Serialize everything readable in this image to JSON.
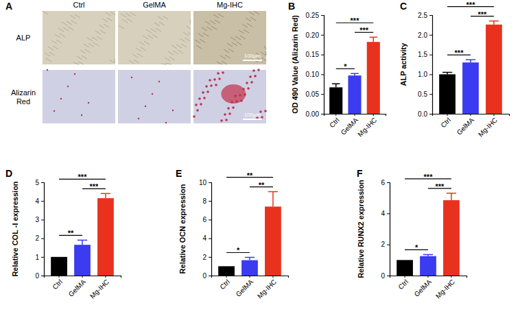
{
  "image_panel": {
    "panel_label": "A",
    "columns": [
      "Ctrl",
      "GelMA",
      "Mg-IHC"
    ],
    "rows": [
      "ALP",
      "Alizarin Red"
    ],
    "scale_bar": "100μm"
  },
  "chart_data": [
    {
      "type": "bar",
      "panel_label": "B",
      "y_label": "OD 490 Value (Alizarin Red)",
      "categories": [
        "Ctrl",
        "GelMA",
        "Mg-IHC"
      ],
      "values": [
        0.067,
        0.097,
        0.182
      ],
      "errors": [
        0.009,
        0.005,
        0.012
      ],
      "colors": [
        "#000000",
        "#3b3bf0",
        "#e8321e"
      ],
      "ylim": [
        0,
        0.25
      ],
      "yticks": [
        {
          "value": 0,
          "label": "0.00"
        },
        {
          "value": 0.05,
          "label": "0.05"
        },
        {
          "value": 0.1,
          "label": "0.10"
        },
        {
          "value": 0.15,
          "label": "0.15"
        },
        {
          "value": 0.2,
          "label": "0.20"
        },
        {
          "value": 0.25,
          "label": "0.25"
        }
      ],
      "annotations": [
        {
          "from": 0,
          "to": 1,
          "label": "*"
        },
        {
          "from": 1,
          "to": 2,
          "label": "***"
        },
        {
          "from": 0,
          "to": 2,
          "label": "***"
        }
      ]
    },
    {
      "type": "bar",
      "panel_label": "C",
      "y_label": "ALP activity",
      "categories": [
        "Ctrl",
        "GelMA",
        "Mg-IHC"
      ],
      "values": [
        1.0,
        1.3,
        2.26
      ],
      "errors": [
        0.05,
        0.07,
        0.09
      ],
      "colors": [
        "#000000",
        "#3b3bf0",
        "#e8321e"
      ],
      "ylim": [
        0,
        2.5
      ],
      "yticks": [
        {
          "value": 0,
          "label": "0.0"
        },
        {
          "value": 0.5,
          "label": "0.5"
        },
        {
          "value": 1,
          "label": "1.0"
        },
        {
          "value": 1.5,
          "label": "1.5"
        },
        {
          "value": 2,
          "label": "2.0"
        },
        {
          "value": 2.5,
          "label": "2.5"
        }
      ],
      "annotations": [
        {
          "from": 0,
          "to": 1,
          "label": "***"
        },
        {
          "from": 1,
          "to": 2,
          "label": "***"
        },
        {
          "from": 0,
          "to": 2,
          "label": "***"
        }
      ]
    },
    {
      "type": "bar",
      "panel_label": "D",
      "y_label": "Relative COL -I expression",
      "categories": [
        "Ctrl",
        "GelMA",
        "Mg-IHC"
      ],
      "values": [
        1,
        1.65,
        4.15
      ],
      "errors": [
        null,
        0.25,
        0.25
      ],
      "colors": [
        "#000000",
        "#3b3bf0",
        "#e8321e"
      ],
      "ylim": [
        0,
        5
      ],
      "yticks": [
        0,
        1,
        2,
        3,
        4,
        5
      ],
      "annotations": [
        {
          "from": 0,
          "to": 1,
          "label": "**"
        },
        {
          "from": 1,
          "to": 2,
          "label": "***"
        },
        {
          "from": 0,
          "to": 2,
          "label": "***"
        }
      ]
    },
    {
      "type": "bar",
      "panel_label": "E",
      "y_label": "Relative OCN expression",
      "categories": [
        "Ctrl",
        "GelMA",
        "Mg-IHC"
      ],
      "values": [
        1,
        1.65,
        7.4
      ],
      "errors": [
        null,
        0.3,
        1.6
      ],
      "colors": [
        "#000000",
        "#3b3bf0",
        "#e8321e"
      ],
      "ylim": [
        0,
        10
      ],
      "yticks": [
        0,
        2,
        4,
        6,
        8,
        10
      ],
      "annotations": [
        {
          "from": 0,
          "to": 1,
          "label": "*"
        },
        {
          "from": 1,
          "to": 2,
          "label": "**"
        },
        {
          "from": 0,
          "to": 2,
          "label": "**"
        }
      ]
    },
    {
      "type": "bar",
      "panel_label": "F",
      "y_label": "Relative RUNX2 expression",
      "categories": [
        "Ctrl",
        "GelMA",
        "Mg-IHC"
      ],
      "values": [
        1,
        1.25,
        4.85
      ],
      "errors": [
        null,
        0.1,
        0.45
      ],
      "colors": [
        "#000000",
        "#3b3bf0",
        "#e8321e"
      ],
      "ylim": [
        0,
        6
      ],
      "yticks": [
        0,
        2,
        4,
        6
      ],
      "annotations": [
        {
          "from": 0,
          "to": 1,
          "label": "*"
        },
        {
          "from": 1,
          "to": 2,
          "label": "***"
        },
        {
          "from": 0,
          "to": 2,
          "label": "***"
        }
      ]
    }
  ]
}
